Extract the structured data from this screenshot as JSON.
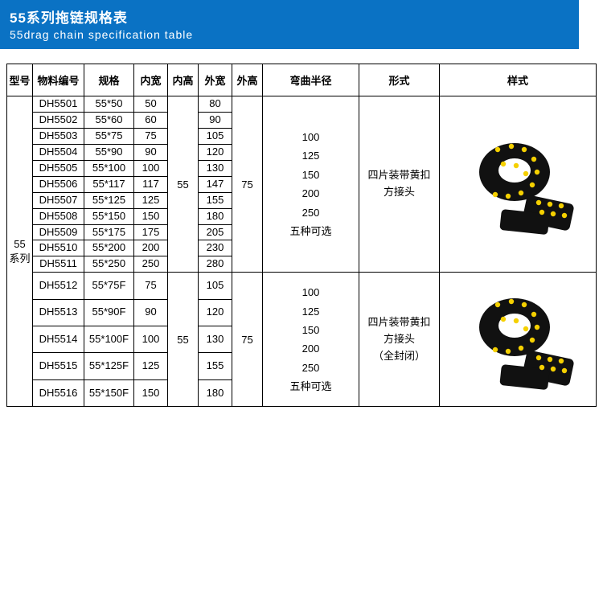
{
  "header": {
    "title_cn": "55系列拖链规格表",
    "title_en": "55drag chain specification table",
    "bg_color": "#0a72c4",
    "text_color": "#ffffff"
  },
  "columns": {
    "model": "型号",
    "code": "物料编号",
    "spec": "规格",
    "inner_w": "内宽",
    "inner_h": "内高",
    "outer_w": "外宽",
    "outer_h": "外高",
    "radius": "弯曲半径",
    "form": "形式",
    "style": "样式"
  },
  "model_label": "55\n系列",
  "group1": {
    "rows": [
      {
        "code": "DH5501",
        "spec": "55*50",
        "iw": "50",
        "ow": "80"
      },
      {
        "code": "DH5502",
        "spec": "55*60",
        "iw": "60",
        "ow": "90"
      },
      {
        "code": "DH5503",
        "spec": "55*75",
        "iw": "75",
        "ow": "105"
      },
      {
        "code": "DH5504",
        "spec": "55*90",
        "iw": "90",
        "ow": "120"
      },
      {
        "code": "DH5505",
        "spec": "55*100",
        "iw": "100",
        "ow": "130"
      },
      {
        "code": "DH5506",
        "spec": "55*117",
        "iw": "117",
        "ow": "147"
      },
      {
        "code": "DH5507",
        "spec": "55*125",
        "iw": "125",
        "ow": "155"
      },
      {
        "code": "DH5508",
        "spec": "55*150",
        "iw": "150",
        "ow": "180"
      },
      {
        "code": "DH5509",
        "spec": "55*175",
        "iw": "175",
        "ow": "205"
      },
      {
        "code": "DH5510",
        "spec": "55*200",
        "iw": "200",
        "ow": "230"
      },
      {
        "code": "DH5511",
        "spec": "55*250",
        "iw": "250",
        "ow": "280"
      }
    ],
    "inner_h": "55",
    "outer_h": "75",
    "radius": [
      "100",
      "125",
      "150",
      "200",
      "250",
      "五种可选"
    ],
    "form": [
      "四片装带黄扣",
      "方接头"
    ]
  },
  "group2": {
    "rows": [
      {
        "code": "DH5512",
        "spec": "55*75F",
        "iw": "75",
        "ow": "105"
      },
      {
        "code": "DH5513",
        "spec": "55*90F",
        "iw": "90",
        "ow": "120"
      },
      {
        "code": "DH5514",
        "spec": "55*100F",
        "iw": "100",
        "ow": "130"
      },
      {
        "code": "DH5515",
        "spec": "55*125F",
        "iw": "125",
        "ow": "155"
      },
      {
        "code": "DH5516",
        "spec": "55*150F",
        "iw": "150",
        "ow": "180"
      }
    ],
    "inner_h": "55",
    "outer_h": "75",
    "radius": [
      "100",
      "125",
      "150",
      "200",
      "250",
      "五种可选"
    ],
    "form": [
      "四片装带黄扣",
      "方接头",
      "（全封闭）"
    ]
  },
  "style_colors": {
    "chain_body": "#111111",
    "chain_dot": "#f5d000"
  }
}
